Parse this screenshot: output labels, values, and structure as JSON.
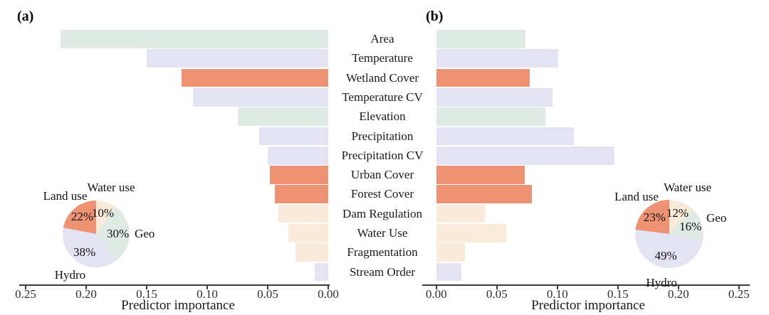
{
  "figure": {
    "panel_a_label": "(a)",
    "panel_b_label": "(b)",
    "x_axis_title": "Predictor importance"
  },
  "colors": {
    "geo": "#dfeae5",
    "hydro": "#e3e3f4",
    "land_use": "#ed9373",
    "water_use": "#f9ead9",
    "axis": "#3a3a3a",
    "text": "#1a1a1a"
  },
  "chart_data": [
    {
      "id": "bar_a",
      "type": "bar",
      "panel": "a",
      "orientation": "horizontal",
      "value_axis_reversed": true,
      "xlabel": "Predictor importance",
      "xlim": [
        0,
        0.26
      ],
      "ticks": [
        0,
        0.05,
        0.1,
        0.15,
        0.2,
        0.25
      ],
      "tick_labels": [
        "0.00",
        "0.05",
        "0.10",
        "0.15",
        "0.20",
        "0.25"
      ],
      "categories": [
        "Area",
        "Temperature",
        "Wetland Cover",
        "Temperature CV",
        "Elevation",
        "Precipitation",
        "Precipitation CV",
        "Urban Cover",
        "Forest Cover",
        "Dam Regulation",
        "Water Use",
        "Fragmentation",
        "Stream Order"
      ],
      "groups": [
        "geo",
        "hydro",
        "land_use",
        "hydro",
        "geo",
        "hydro",
        "hydro",
        "land_use",
        "land_use",
        "water_use",
        "water_use",
        "water_use",
        "hydro"
      ],
      "values": [
        0.221,
        0.15,
        0.121,
        0.112,
        0.075,
        0.057,
        0.05,
        0.048,
        0.044,
        0.041,
        0.033,
        0.027,
        0.011
      ]
    },
    {
      "id": "bar_b",
      "type": "bar",
      "panel": "b",
      "orientation": "horizontal",
      "value_axis_reversed": false,
      "xlabel": "Predictor importance",
      "xlim": [
        0,
        0.26
      ],
      "ticks": [
        0,
        0.05,
        0.1,
        0.15,
        0.2,
        0.25
      ],
      "tick_labels": [
        "0.00",
        "0.05",
        "0.10",
        "0.15",
        "0.20",
        "0.25"
      ],
      "categories": [
        "Area",
        "Temperature",
        "Wetland Cover",
        "Temperature CV",
        "Elevation",
        "Precipitation",
        "Precipitation CV",
        "Urban Cover",
        "Forest Cover",
        "Dam Regulation",
        "Water Use",
        "Fragmentation",
        "Stream Order"
      ],
      "groups": [
        "geo",
        "hydro",
        "land_use",
        "hydro",
        "geo",
        "hydro",
        "hydro",
        "land_use",
        "land_use",
        "water_use",
        "water_use",
        "water_use",
        "hydro"
      ],
      "values": [
        0.074,
        0.101,
        0.077,
        0.096,
        0.09,
        0.114,
        0.147,
        0.073,
        0.079,
        0.04,
        0.058,
        0.024,
        0.021
      ]
    },
    {
      "id": "pie_a",
      "type": "pie",
      "panel": "a",
      "start_angle_deg": 0,
      "clockwise": true,
      "slices": [
        {
          "label": "Water use",
          "value": 10,
          "text": "10%",
          "group": "water_use"
        },
        {
          "label": "Geo",
          "value": 30,
          "text": "30%",
          "group": "geo"
        },
        {
          "label": "Hydro",
          "value": 38,
          "text": "38%",
          "group": "hydro"
        },
        {
          "label": "Land use",
          "value": 22,
          "text": "22%",
          "group": "land_use"
        }
      ]
    },
    {
      "id": "pie_b",
      "type": "pie",
      "panel": "b",
      "start_angle_deg": 0,
      "clockwise": true,
      "slices": [
        {
          "label": "Water use",
          "value": 12,
          "text": "12%",
          "group": "water_use"
        },
        {
          "label": "Geo",
          "value": 16,
          "text": "16%",
          "group": "geo"
        },
        {
          "label": "Hydro",
          "value": 49,
          "text": "49%",
          "group": "hydro"
        },
        {
          "label": "Land use",
          "value": 23,
          "text": "23%",
          "group": "land_use"
        }
      ]
    }
  ]
}
